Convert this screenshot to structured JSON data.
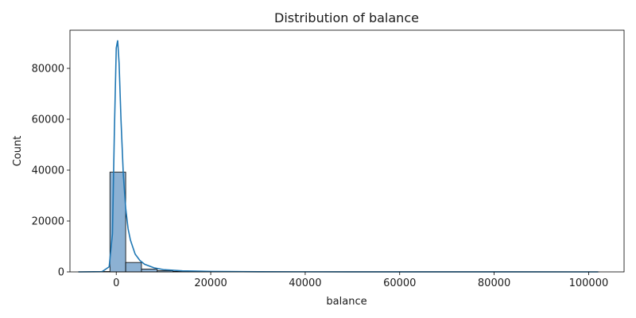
{
  "chart_data": {
    "type": "histogram",
    "title": "Distribution of balance",
    "xlabel": "balance",
    "ylabel": "Count",
    "xlim": [
      -9800,
      107500
    ],
    "ylim": [
      0,
      95000
    ],
    "x_ticks": [
      0,
      20000,
      40000,
      60000,
      80000,
      100000
    ],
    "y_ticks": [
      0,
      20000,
      40000,
      60000,
      80000
    ],
    "bar_color": "#4c72b0",
    "bar_fill": "#8cb1d3",
    "kde_color": "#1f77b4",
    "bins": [
      {
        "x0": -8019,
        "x1": -4680,
        "count": 30
      },
      {
        "x0": -4680,
        "x1": -1341,
        "count": 150
      },
      {
        "x0": -1341,
        "x1": 1998,
        "count": 39200
      },
      {
        "x0": 1998,
        "x1": 5337,
        "count": 3700
      },
      {
        "x0": 5337,
        "x1": 8676,
        "count": 1100
      },
      {
        "x0": 8676,
        "x1": 12015,
        "count": 450
      },
      {
        "x0": 12015,
        "x1": 15354,
        "count": 200
      },
      {
        "x0": 15354,
        "x1": 18693,
        "count": 100
      },
      {
        "x0": 18693,
        "x1": 22032,
        "count": 60
      },
      {
        "x0": 22032,
        "x1": 25371,
        "count": 35
      },
      {
        "x0": 25371,
        "x1": 28710,
        "count": 22
      },
      {
        "x0": 28710,
        "x1": 32049,
        "count": 14
      },
      {
        "x0": 32049,
        "x1": 35388,
        "count": 10
      },
      {
        "x0": 35388,
        "x1": 38727,
        "count": 7
      },
      {
        "x0": 38727,
        "x1": 42066,
        "count": 5
      },
      {
        "x0": 42066,
        "x1": 45405,
        "count": 4
      },
      {
        "x0": 45405,
        "x1": 48744,
        "count": 3
      },
      {
        "x0": 48744,
        "x1": 52083,
        "count": 3
      },
      {
        "x0": 52083,
        "x1": 55422,
        "count": 2
      },
      {
        "x0": 55422,
        "x1": 58761,
        "count": 2
      },
      {
        "x0": 58761,
        "x1": 62100,
        "count": 1
      },
      {
        "x0": 62100,
        "x1": 65439,
        "count": 1
      },
      {
        "x0": 65439,
        "x1": 68778,
        "count": 1
      },
      {
        "x0": 68778,
        "x1": 72117,
        "count": 1
      },
      {
        "x0": 72117,
        "x1": 75456,
        "count": 1
      },
      {
        "x0": 75456,
        "x1": 78795,
        "count": 1
      },
      {
        "x0": 78795,
        "x1": 82134,
        "count": 1
      },
      {
        "x0": 82134,
        "x1": 85473,
        "count": 1
      },
      {
        "x0": 85473,
        "x1": 88812,
        "count": 1
      },
      {
        "x0": 88812,
        "x1": 92151,
        "count": 1
      },
      {
        "x0": 92151,
        "x1": 95490,
        "count": 1
      },
      {
        "x0": 95490,
        "x1": 98829,
        "count": 1
      },
      {
        "x0": 98829,
        "x1": 102168,
        "count": 1
      }
    ],
    "kde": {
      "x": [
        -8000,
        -3000,
        -1500,
        -800,
        -400,
        0,
        300,
        600,
        1000,
        1500,
        2000,
        2500,
        3000,
        4000,
        5000,
        6000,
        8000,
        10000,
        14000,
        20000,
        30000,
        50000,
        80000,
        102000
      ],
      "y": [
        0,
        100,
        2000,
        15000,
        55000,
        88000,
        91000,
        82000,
        60000,
        38000,
        25000,
        17000,
        12500,
        7000,
        4500,
        3000,
        1600,
        900,
        400,
        180,
        60,
        20,
        5,
        0
      ]
    }
  }
}
